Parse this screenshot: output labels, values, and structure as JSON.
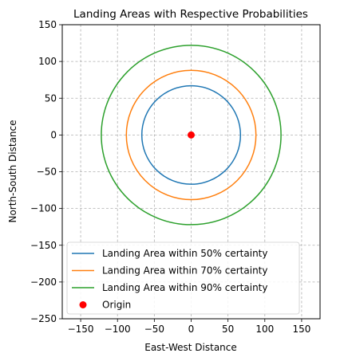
{
  "chart_data": {
    "type": "line",
    "title": "Landing Areas with Respective Probabilities",
    "xlabel": "East-West Distance",
    "ylabel": "North-South Distance",
    "xlim": [
      -175,
      175
    ],
    "ylim": [
      -250,
      150
    ],
    "xticks": [
      -150,
      -100,
      -50,
      0,
      50,
      100,
      150
    ],
    "yticks": [
      -250,
      -200,
      -150,
      -100,
      -50,
      0,
      50,
      100,
      150
    ],
    "grid": true,
    "grid_style": "dashed",
    "aspect": "equal",
    "legend_position": "lower-center",
    "series": [
      {
        "name": "Landing Area within 50% certainty",
        "shape": "circle",
        "center": [
          0,
          0
        ],
        "radius": 67,
        "color": "#1f77b4"
      },
      {
        "name": "Landing Area within 70% certainty",
        "shape": "circle",
        "center": [
          0,
          0
        ],
        "radius": 88,
        "color": "#ff7f0e"
      },
      {
        "name": "Landing Area within 90% certainty",
        "shape": "circle",
        "center": [
          0,
          0
        ],
        "radius": 122,
        "color": "#2ca02c"
      }
    ],
    "points": [
      {
        "name": "Origin",
        "x": 0,
        "y": 0,
        "color": "#ff0000"
      }
    ]
  }
}
